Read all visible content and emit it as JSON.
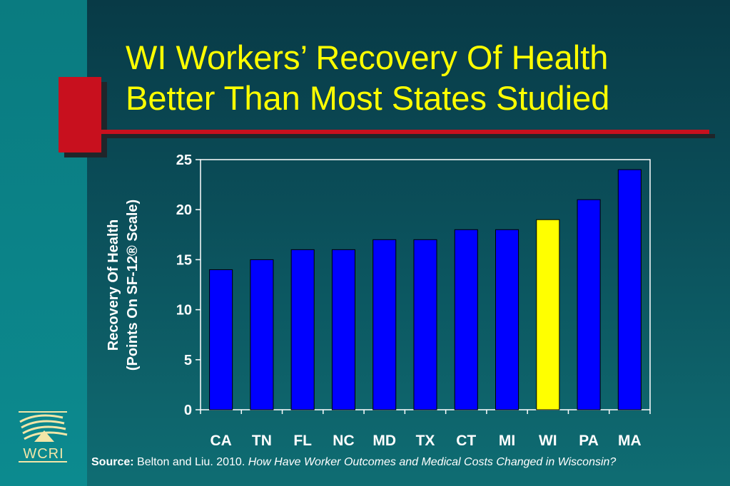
{
  "slide": {
    "title_lines": [
      "WI Workers’ Recovery Of Health",
      "Better Than Most States Studied"
    ],
    "source_label": "Source:",
    "source_text": " Belton and Liu. 2010. ",
    "source_italic": "How Have Worker Outcomes and Medical Costs Changed in Wisconsin?",
    "logo_text": "WCRI",
    "colors": {
      "title": "#ffff00",
      "accent": "#c8101e",
      "bar": "#0000ff",
      "highlight_bar": "#ffff00"
    }
  },
  "chart_data": {
    "type": "bar",
    "title": "",
    "xlabel": "",
    "ylabel_lines": [
      "Recovery Of Health",
      "(Points On SF-12® Scale)"
    ],
    "categories": [
      "CA",
      "TN",
      "FL",
      "NC",
      "MD",
      "TX",
      "CT",
      "MI",
      "WI",
      "PA",
      "MA"
    ],
    "values": [
      14,
      15,
      16,
      16,
      17,
      17,
      18,
      18,
      19,
      21,
      24
    ],
    "highlight_category": "WI",
    "ylim": [
      0,
      25
    ],
    "yticks": [
      0,
      5,
      10,
      15,
      20,
      25
    ],
    "grid": false,
    "legend": "none"
  }
}
